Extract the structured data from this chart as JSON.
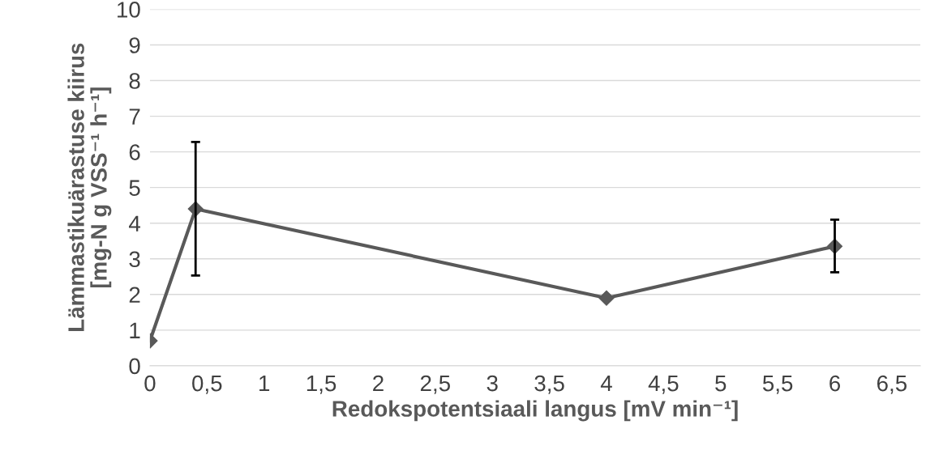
{
  "chart_data": {
    "type": "line",
    "xlabel": "Redokspotentsiaali langus [mV min⁻¹]",
    "ylabel": "Lämmastikuärastuse kiirus\n[mg-N g VSS⁻¹ h⁻¹]",
    "x": [
      0,
      0.4,
      4,
      6
    ],
    "series": [
      {
        "color": "#595959",
        "values": [
          0.7,
          4.4,
          1.9,
          3.35
        ],
        "errors": [
          null,
          [
            2.53,
            6.28
          ],
          null,
          [
            2.62,
            4.1
          ]
        ]
      }
    ],
    "xlim": [
      0,
      6.75
    ],
    "xticks": [
      0,
      {
        "value": 0.5,
        "label": "0,5"
      },
      1,
      {
        "value": 1.5,
        "label": "1,5"
      },
      2,
      {
        "value": 2.5,
        "label": "2,5"
      },
      3,
      {
        "value": 3.5,
        "label": "3,5"
      },
      4,
      {
        "value": 4.5,
        "label": "4,5"
      },
      5,
      {
        "value": 5.5,
        "label": "5,5"
      },
      6,
      {
        "value": 6.5,
        "label": "6,5"
      }
    ],
    "ylim": [
      0,
      10
    ],
    "yticks": [
      0,
      1,
      2,
      3,
      4,
      5,
      6,
      7,
      8,
      9,
      10
    ],
    "grid": "y",
    "marker": "diamond",
    "line_style": "solid",
    "legend": false
  }
}
